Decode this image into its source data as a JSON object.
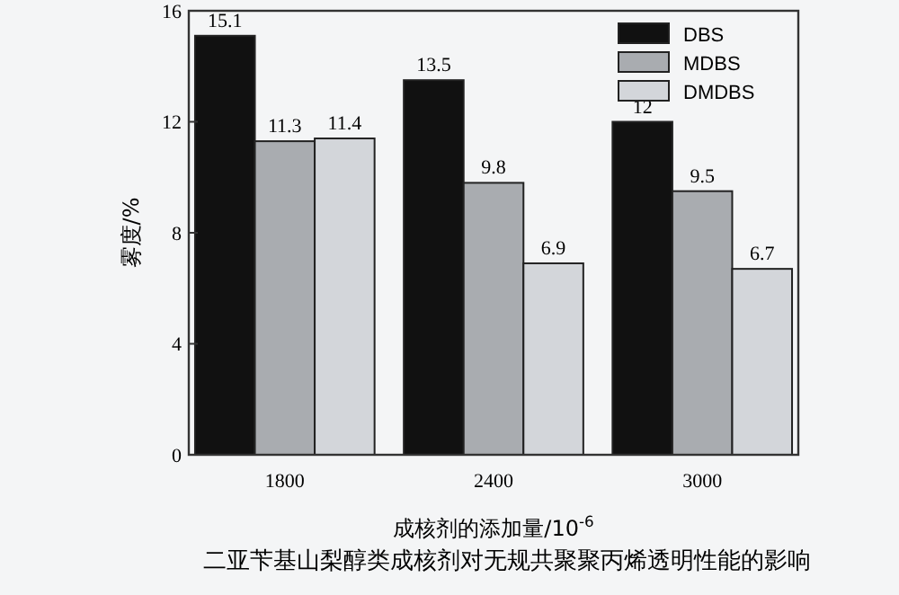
{
  "chart_data": {
    "type": "bar",
    "title": "二亚苄基山梨醇类成核剂对无规共聚聚丙烯透明性能的影响",
    "xlabel": "成核剂的添加量/10$^{-6}$",
    "ylabel": "雾度/%",
    "categories": [
      "1800",
      "2400",
      "3000"
    ],
    "series": [
      {
        "name": "DBS",
        "color": "#111111",
        "values": [
          15.1,
          13.5,
          12
        ]
      },
      {
        "name": "MDBS",
        "color": "#a9acb0",
        "values": [
          11.3,
          9.8,
          9.5
        ]
      },
      {
        "name": "DMDBS",
        "color": "#d3d6da",
        "values": [
          11.4,
          6.9,
          6.7
        ]
      }
    ],
    "ylim": [
      0,
      16
    ],
    "yticks": [
      0,
      4,
      8,
      12,
      16
    ],
    "grid": false,
    "legend": "top right",
    "data_labels": true
  }
}
